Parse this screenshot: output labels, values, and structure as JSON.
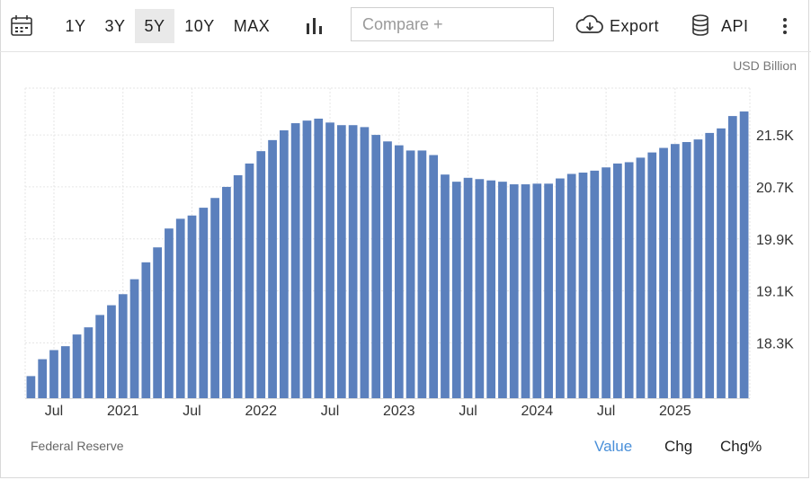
{
  "toolbar": {
    "ranges": [
      "1Y",
      "3Y",
      "5Y",
      "10Y",
      "MAX"
    ],
    "active_range": "5Y",
    "compare_placeholder": "Compare +",
    "export_label": "Export",
    "api_label": "API"
  },
  "unit_label": "USD Billion",
  "source_label": "Federal Reserve",
  "tabs": [
    "Value",
    "Chg",
    "Chg%"
  ],
  "active_tab": "Value",
  "colors": {
    "bar": "#5b80bd",
    "active_tab": "#4a90d9",
    "grid": "#e6e6e6"
  },
  "chart_data": {
    "type": "bar",
    "y_ticks": [
      "18.3K",
      "19.1K",
      "19.9K",
      "20.7K",
      "21.5K"
    ],
    "y_tick_values": [
      18300,
      19100,
      19900,
      20700,
      21500
    ],
    "ylim": [
      17450,
      22220
    ],
    "x_labels": [
      {
        "label": "Jul",
        "index": 2
      },
      {
        "label": "2021",
        "index": 8
      },
      {
        "label": "Jul",
        "index": 14
      },
      {
        "label": "2022",
        "index": 20
      },
      {
        "label": "Jul",
        "index": 26
      },
      {
        "label": "2023",
        "index": 32
      },
      {
        "label": "Jul",
        "index": 38
      },
      {
        "label": "2024",
        "index": 44
      },
      {
        "label": "Jul",
        "index": 50
      },
      {
        "label": "2025",
        "index": 56
      }
    ],
    "values": [
      17790,
      18050,
      18190,
      18250,
      18430,
      18540,
      18730,
      18880,
      19050,
      19280,
      19540,
      19770,
      20060,
      20210,
      20260,
      20380,
      20530,
      20700,
      20880,
      21060,
      21250,
      21420,
      21570,
      21680,
      21720,
      21750,
      21690,
      21650,
      21650,
      21620,
      21500,
      21400,
      21340,
      21260,
      21260,
      21190,
      20890,
      20780,
      20840,
      20820,
      20800,
      20780,
      20740,
      20740,
      20750,
      20750,
      20830,
      20900,
      20920,
      20950,
      21000,
      21060,
      21080,
      21150,
      21230,
      21300,
      21360,
      21390,
      21430,
      21530,
      21600,
      21790,
      21860
    ]
  }
}
